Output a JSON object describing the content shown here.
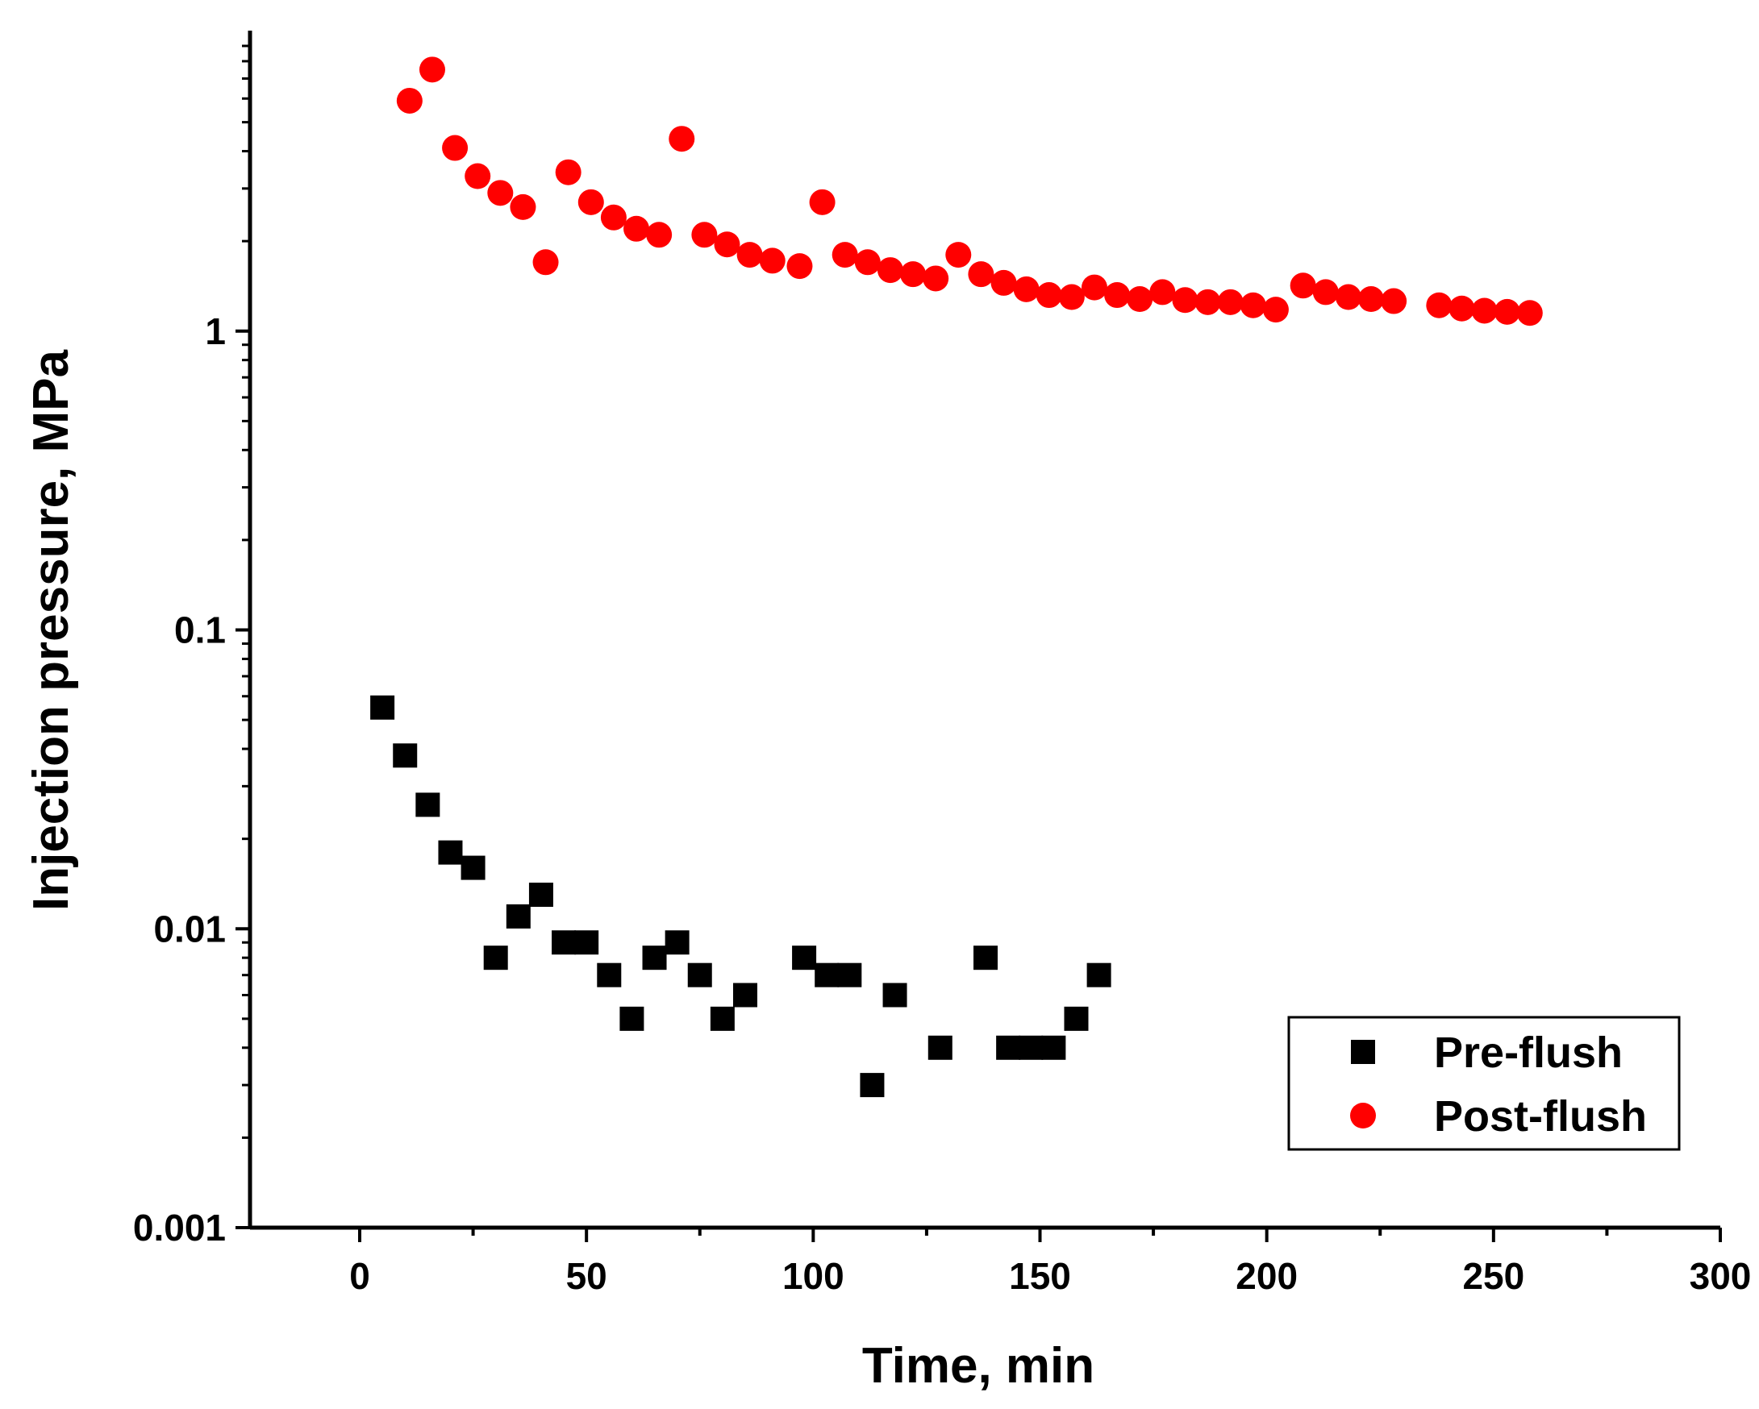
{
  "chart_data": {
    "type": "scatter",
    "title": "",
    "xlabel": "Time, min",
    "ylabel": "Injection pressure, MPa",
    "xlim": [
      -25,
      300
    ],
    "ylim": [
      0.001,
      10
    ],
    "yscale": "log",
    "grid": false,
    "legend_position": "bottom-right",
    "x_ticks": [
      0,
      50,
      100,
      150,
      200,
      250,
      300
    ],
    "x_tick_labels": [
      "0",
      "50",
      "100",
      "150",
      "200",
      "250",
      "300"
    ],
    "y_ticks": [
      0.001,
      0.01,
      0.1,
      1
    ],
    "y_tick_labels": [
      "0.001",
      "0.01",
      "0.1",
      "1"
    ],
    "series": [
      {
        "name": "Pre-flush",
        "marker": "square",
        "color": "#000000",
        "x": [
          5,
          10,
          15,
          20,
          25,
          30,
          35,
          40,
          45,
          50,
          55,
          60,
          65,
          70,
          75,
          80,
          85,
          98,
          103,
          108,
          113,
          118,
          128,
          138,
          143,
          148,
          153,
          158,
          163
        ],
        "y": [
          0.055,
          0.038,
          0.026,
          0.018,
          0.016,
          0.008,
          0.011,
          0.013,
          0.009,
          0.009,
          0.007,
          0.005,
          0.008,
          0.009,
          0.007,
          0.005,
          0.006,
          0.008,
          0.007,
          0.007,
          0.003,
          0.006,
          0.004,
          0.008,
          0.004,
          0.004,
          0.004,
          0.005,
          0.007
        ]
      },
      {
        "name": "Post-flush",
        "marker": "circle",
        "color": "#ff0000",
        "x": [
          11,
          16,
          21,
          26,
          31,
          36,
          41,
          46,
          51,
          56,
          61,
          66,
          71,
          76,
          81,
          86,
          91,
          97,
          102,
          107,
          112,
          117,
          122,
          127,
          132,
          137,
          142,
          147,
          152,
          157,
          162,
          167,
          172,
          177,
          182,
          187,
          192,
          197,
          202,
          208,
          213,
          218,
          223,
          228,
          238,
          243,
          248,
          253,
          258
        ],
        "y": [
          5.9,
          7.5,
          4.1,
          3.3,
          2.9,
          2.6,
          1.7,
          3.4,
          2.7,
          2.4,
          2.2,
          2.1,
          4.4,
          2.1,
          1.95,
          1.8,
          1.72,
          1.65,
          2.7,
          1.8,
          1.7,
          1.6,
          1.55,
          1.5,
          1.8,
          1.55,
          1.45,
          1.38,
          1.32,
          1.3,
          1.4,
          1.32,
          1.28,
          1.35,
          1.27,
          1.25,
          1.25,
          1.22,
          1.18,
          1.42,
          1.35,
          1.3,
          1.28,
          1.26,
          1.22,
          1.19,
          1.17,
          1.16,
          1.15
        ]
      }
    ]
  }
}
